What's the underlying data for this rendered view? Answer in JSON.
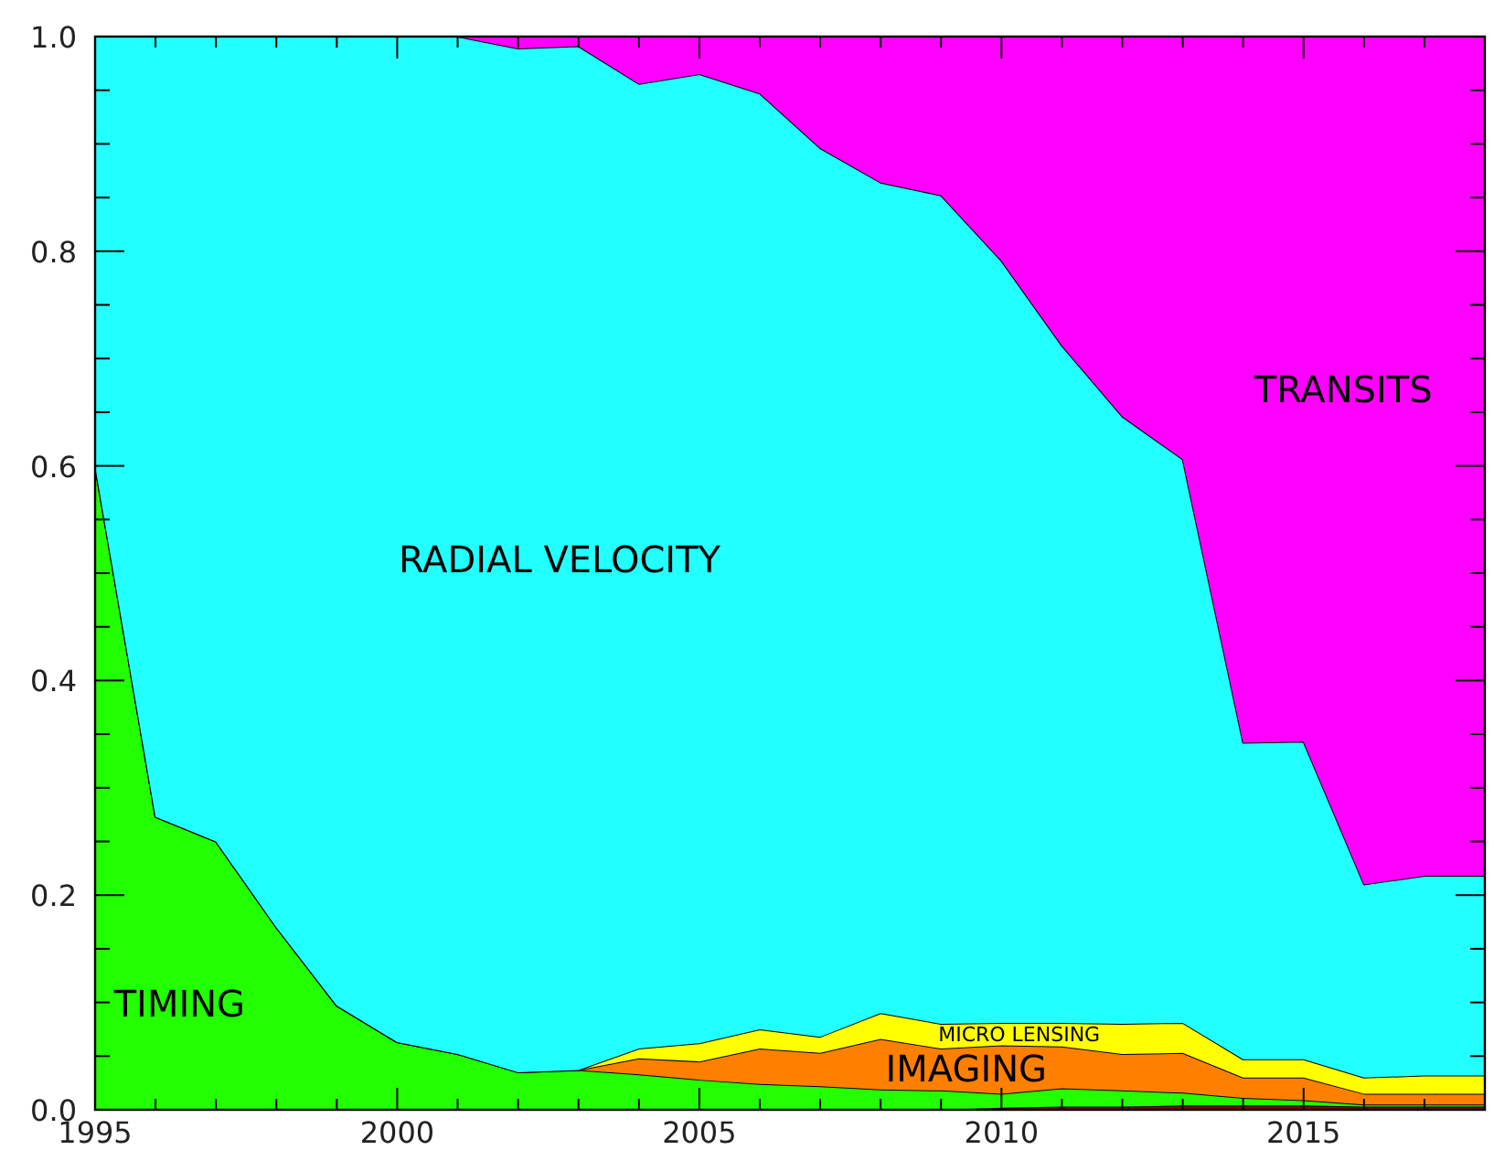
{
  "chart_data": {
    "type": "area",
    "stacked": true,
    "x": [
      1995,
      1996,
      1997,
      1998,
      1999,
      2000,
      2001,
      2002,
      2003,
      2004,
      2005,
      2006,
      2007,
      2008,
      2009,
      2010,
      2011,
      2012,
      2013,
      2014,
      2015,
      2016,
      2017,
      2018
    ],
    "series": [
      {
        "color": "#8b0000",
        "values": [
          0,
          0,
          0,
          0,
          0,
          0,
          0,
          0,
          0,
          0,
          0,
          0,
          0,
          0,
          0,
          0.002,
          0.003,
          0.003,
          0.004,
          0.004,
          0.004,
          0.003,
          0.003,
          0.003
        ]
      },
      {
        "name": "TIMING",
        "color": "#22ff00",
        "values": [
          0.6,
          0.273,
          0.25,
          0.17,
          0.097,
          0.063,
          0.052,
          0.035,
          0.037,
          0.033,
          0.028,
          0.024,
          0.022,
          0.019,
          0.018,
          0.013,
          0.017,
          0.015,
          0.012,
          0.007,
          0.005,
          0.002,
          0.002,
          0.002
        ]
      },
      {
        "name": "IMAGING",
        "color": "#ff8000",
        "values": [
          0,
          0,
          0,
          0,
          0,
          0,
          0,
          0,
          0,
          0.015,
          0.017,
          0.033,
          0.031,
          0.047,
          0.039,
          0.045,
          0.039,
          0.034,
          0.037,
          0.019,
          0.021,
          0.01,
          0.01,
          0.01
        ]
      },
      {
        "name": "MICRO LENSING",
        "color": "#ffff00",
        "values": [
          0,
          0,
          0,
          0,
          0,
          0,
          0,
          0,
          0,
          0.009,
          0.017,
          0.018,
          0.015,
          0.024,
          0.023,
          0.021,
          0.022,
          0.028,
          0.028,
          0.017,
          0.017,
          0.015,
          0.017,
          0.017
        ]
      },
      {
        "name": "RADIAL VELOCITY",
        "color": "#22ffff",
        "values": [
          0.4,
          0.727,
          0.75,
          0.83,
          0.903,
          0.937,
          0.948,
          0.954,
          0.954,
          0.899,
          0.903,
          0.872,
          0.828,
          0.774,
          0.772,
          0.71,
          0.631,
          0.566,
          0.525,
          0.295,
          0.296,
          0.18,
          0.186,
          0.186
        ]
      },
      {
        "name": "TRANSITS",
        "color": "#ff00ff",
        "values": [
          0,
          0,
          0,
          0,
          0,
          0,
          0,
          0.011,
          0.009,
          0.044,
          0.035,
          0.053,
          0.104,
          0.136,
          0.148,
          0.209,
          0.288,
          0.354,
          0.394,
          0.658,
          0.657,
          0.79,
          0.782,
          0.782
        ]
      }
    ],
    "xlim": [
      1995,
      2018
    ],
    "ylim": [
      0,
      1
    ],
    "xticks": [
      1995,
      {
        "value": 1996,
        "label": null
      },
      {
        "value": 1997,
        "label": null
      },
      {
        "value": 1998,
        "label": null
      },
      {
        "value": 1999,
        "label": null
      },
      2000,
      {
        "value": 2001,
        "label": null
      },
      {
        "value": 2002,
        "label": null
      },
      {
        "value": 2003,
        "label": null
      },
      {
        "value": 2004,
        "label": null
      },
      2005,
      {
        "value": 2006,
        "label": null
      },
      {
        "value": 2007,
        "label": null
      },
      {
        "value": 2008,
        "label": null
      },
      {
        "value": 2009,
        "label": null
      },
      2010,
      {
        "value": 2011,
        "label": null
      },
      {
        "value": 2012,
        "label": null
      },
      {
        "value": 2013,
        "label": null
      },
      {
        "value": 2014,
        "label": null
      },
      2015,
      {
        "value": 2016,
        "label": null
      },
      {
        "value": 2017,
        "label": null
      },
      {
        "value": 2018,
        "label": null
      }
    ],
    "yticks": [
      {
        "value": 0,
        "label": "0.0"
      },
      {
        "value": 0.05,
        "label": null
      },
      {
        "value": 0.1,
        "label": null
      },
      {
        "value": 0.15,
        "label": null
      },
      {
        "value": 0.2,
        "label": "0.2"
      },
      {
        "value": 0.25,
        "label": null
      },
      {
        "value": 0.3,
        "label": null
      },
      {
        "value": 0.35,
        "label": null
      },
      {
        "value": 0.4,
        "label": "0.4"
      },
      {
        "value": 0.45,
        "label": null
      },
      {
        "value": 0.5,
        "label": null
      },
      {
        "value": 0.55,
        "label": null
      },
      {
        "value": 0.6,
        "label": "0.6"
      },
      {
        "value": 0.65,
        "label": null
      },
      {
        "value": 0.7,
        "label": null
      },
      {
        "value": 0.75,
        "label": null
      },
      {
        "value": 0.8,
        "label": "0.8"
      },
      {
        "value": 0.85,
        "label": null
      },
      {
        "value": 0.9,
        "label": null
      },
      {
        "value": 0.95,
        "label": null
      },
      {
        "value": 1,
        "label": "1.0"
      }
    ],
    "grid": false
  }
}
